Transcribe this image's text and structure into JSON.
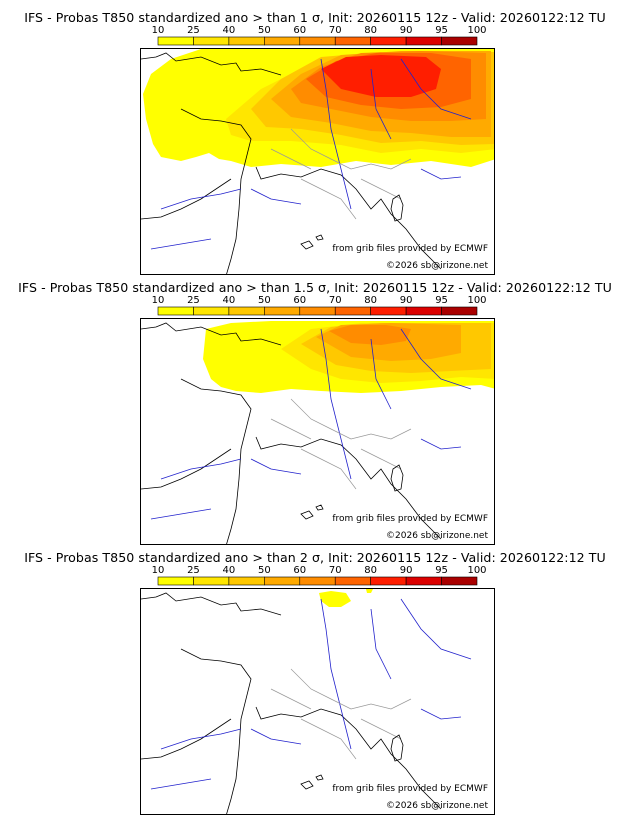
{
  "panels": [
    {
      "title": "IFS - Probas T850  standardized ano > than 1 σ, Init: 20260115 12z - Valid: 20260122:12 TU",
      "credit_source": "from grib files provided by ECMWF",
      "credit_copyright": "©2026 sb@irizone.net"
    },
    {
      "title": "IFS - Probas T850  standardized ano > than 1.5 σ, Init: 20260115 12z - Valid: 20260122:12 TU",
      "credit_source": "from grib files provided by ECMWF",
      "credit_copyright": "©2026 sb@irizone.net"
    },
    {
      "title": "IFS - Probas T850  standardized ano > than 2 σ, Init: 20260115 12z - Valid: 20260122:12 TU",
      "credit_source": "from grib files provided by ECMWF",
      "credit_copyright": "©2026 sb@irizone.net"
    }
  ],
  "colorbar": {
    "levels": [
      "10",
      "25",
      "40",
      "50",
      "60",
      "70",
      "80",
      "90",
      "95",
      "100"
    ],
    "colors": [
      "#ffff00",
      "#ffe600",
      "#ffc800",
      "#ffaa00",
      "#ff8c00",
      "#ff6400",
      "#ff1e00",
      "#dc0000",
      "#aa0000",
      "#6e0000"
    ]
  },
  "map_colors": {
    "coast": "#000000",
    "rivers": "#2222cc",
    "borders": "#999999"
  }
}
